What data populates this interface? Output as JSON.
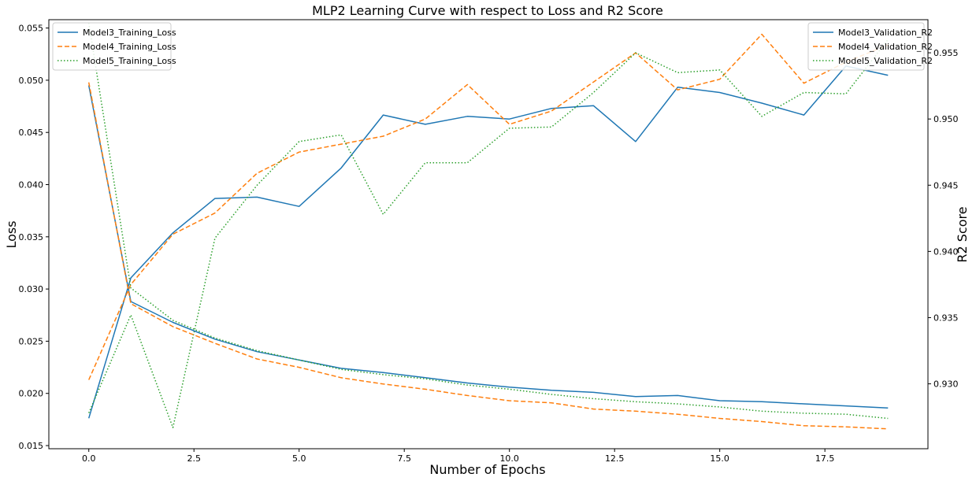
{
  "chart_data": {
    "type": "line",
    "title": "MLP2 Learning Curve with respect to Loss and R2 Score",
    "xlabel": "Number of Epochs",
    "ylabel_left": "Loss",
    "ylabel_right": "R2 Score",
    "xlim": [
      -0.95,
      19.95
    ],
    "ylim_left": [
      0.0147,
      0.0558
    ],
    "ylim_right": [
      0.9251,
      0.9575
    ],
    "x": [
      0,
      1,
      2,
      3,
      4,
      5,
      6,
      7,
      8,
      9,
      10,
      11,
      12,
      13,
      14,
      15,
      16,
      17,
      18,
      19
    ],
    "xticks": [
      0.0,
      2.5,
      5.0,
      7.5,
      10.0,
      12.5,
      15.0,
      17.5
    ],
    "xtick_labels": [
      "0.0",
      "2.5",
      "5.0",
      "7.5",
      "10.0",
      "12.5",
      "15.0",
      "17.5"
    ],
    "yticks_left": [
      0.015,
      0.02,
      0.025,
      0.03,
      0.035,
      0.04,
      0.045,
      0.05,
      0.055
    ],
    "ytick_labels_left": [
      "0.015",
      "0.020",
      "0.025",
      "0.030",
      "0.035",
      "0.040",
      "0.045",
      "0.050",
      "0.055"
    ],
    "yticks_right": [
      0.93,
      0.935,
      0.94,
      0.945,
      0.95,
      0.955
    ],
    "ytick_labels_right": [
      "0.930",
      "0.935",
      "0.940",
      "0.945",
      "0.950",
      "0.955"
    ],
    "grid": false,
    "series_left": [
      {
        "name": "Model3_Training_Loss",
        "color": "#1f77b4",
        "dash": "solid",
        "values": [
          0.0495,
          0.0288,
          0.0268,
          0.0252,
          0.024,
          0.0232,
          0.0224,
          0.022,
          0.0215,
          0.021,
          0.0206,
          0.0203,
          0.0201,
          0.0197,
          0.0198,
          0.0193,
          0.0192,
          0.019,
          0.0188,
          0.0186
        ]
      },
      {
        "name": "Model4_Training_Loss",
        "color": "#ff7f0e",
        "dash": "dashed",
        "values": [
          0.0498,
          0.0286,
          0.0264,
          0.0248,
          0.0233,
          0.0225,
          0.0215,
          0.0209,
          0.0204,
          0.0198,
          0.0193,
          0.0191,
          0.0185,
          0.0183,
          0.018,
          0.0176,
          0.0173,
          0.0169,
          0.0168,
          0.0166
        ]
      },
      {
        "name": "Model5_Training_Loss",
        "color": "#2ca02c",
        "dash": "dotted",
        "values": [
          0.0555,
          0.0301,
          0.027,
          0.0253,
          0.0241,
          0.0232,
          0.0223,
          0.0218,
          0.0214,
          0.0208,
          0.0204,
          0.0199,
          0.0195,
          0.0192,
          0.019,
          0.0187,
          0.0183,
          0.0181,
          0.018,
          0.0176
        ]
      }
    ],
    "series_right": [
      {
        "name": "Model3_Validation_R2",
        "color": "#1f77b4",
        "dash": "solid",
        "values": [
          0.9274,
          0.938,
          0.9414,
          0.944,
          0.9441,
          0.9434,
          0.9463,
          0.9503,
          0.9496,
          0.9502,
          0.95,
          0.9508,
          0.951,
          0.9483,
          0.9524,
          0.952,
          0.9512,
          0.9503,
          0.954,
          0.9533
        ]
      },
      {
        "name": "Model4_Validation_R2",
        "color": "#ff7f0e",
        "dash": "dashed",
        "values": [
          0.9303,
          0.9375,
          0.9413,
          0.9429,
          0.9459,
          0.9475,
          0.9481,
          0.9487,
          0.95,
          0.9526,
          0.9496,
          0.9506,
          0.9528,
          0.955,
          0.9522,
          0.953,
          0.9564,
          0.9527,
          0.9543,
          0.9556
        ]
      },
      {
        "name": "Model5_Validation_R2",
        "color": "#2ca02c",
        "dash": "dotted",
        "values": [
          0.9278,
          0.9352,
          0.9267,
          0.941,
          0.945,
          0.9483,
          0.9488,
          0.9428,
          0.9467,
          0.9467,
          0.9493,
          0.9494,
          0.952,
          0.955,
          0.9535,
          0.9537,
          0.9502,
          0.952,
          0.9519,
          0.956
        ]
      }
    ],
    "legend_left": {
      "placement": "top-left",
      "entries": [
        "Model3_Training_Loss",
        "Model4_Training_Loss",
        "Model5_Training_Loss"
      ]
    },
    "legend_right": {
      "placement": "top-right",
      "entries": [
        "Model3_Validation_R2",
        "Model4_Validation_R2",
        "Model5_Validation_R2"
      ]
    }
  }
}
